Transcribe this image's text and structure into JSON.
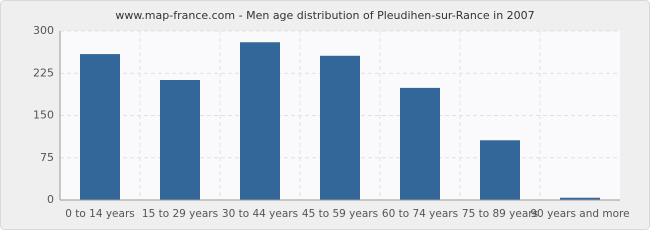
{
  "chart_data": {
    "type": "bar",
    "title": "www.map-france.com - Men age distribution of Pleudihen-sur-Rance in 2007",
    "categories": [
      "0 to 14 years",
      "15 to 29 years",
      "30 to 44 years",
      "45 to 59 years",
      "60 to 74 years",
      "75 to 89 years",
      "90 years and more"
    ],
    "values": [
      259,
      213,
      280,
      256,
      199,
      106,
      4
    ],
    "color": "#336699",
    "ylim": [
      0,
      300
    ],
    "yticks": [
      0,
      75,
      150,
      225,
      300
    ],
    "grid": true
  }
}
